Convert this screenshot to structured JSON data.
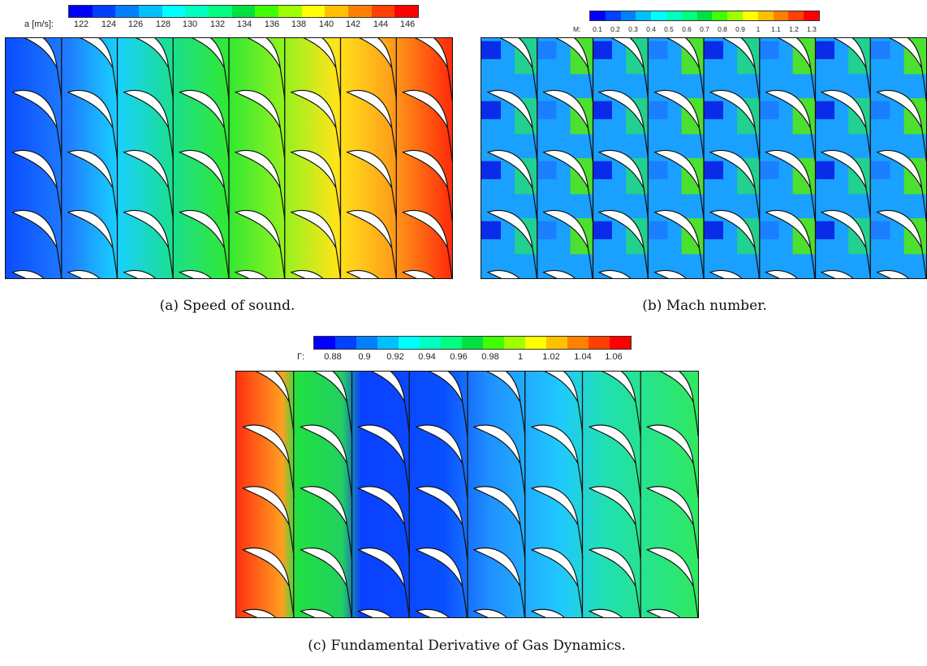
{
  "panels": {
    "a": {
      "colorbar_label": "a [m/s]:",
      "ticks": [
        "122",
        "124",
        "126",
        "128",
        "130",
        "132",
        "134",
        "136",
        "138",
        "140",
        "142",
        "144",
        "146"
      ],
      "caption": "(a) Speed of sound."
    },
    "b": {
      "colorbar_label": "M:",
      "ticks": [
        "0.1",
        "0.2",
        "0.3",
        "0.4",
        "0.5",
        "0.6",
        "0.7",
        "0.8",
        "0.9",
        "1",
        "1.1",
        "1.2",
        "1.3"
      ],
      "caption": "(b) Mach number."
    },
    "c": {
      "colorbar_label": "Γ:",
      "ticks": [
        "0.88",
        "0.9",
        "0.92",
        "0.94",
        "0.96",
        "0.98",
        "1",
        "1.02",
        "1.04",
        "1.06"
      ],
      "caption": "(c) Fundamental Derivative of Gas Dynamics."
    }
  },
  "colormap": [
    "#0000ff",
    "#0040ff",
    "#0080ff",
    "#00c0ff",
    "#00ffff",
    "#00ffc0",
    "#00ff80",
    "#00e040",
    "#40ff00",
    "#a0ff00",
    "#ffff00",
    "#ffc000",
    "#ff8000",
    "#ff4000",
    "#ff0000"
  ]
}
